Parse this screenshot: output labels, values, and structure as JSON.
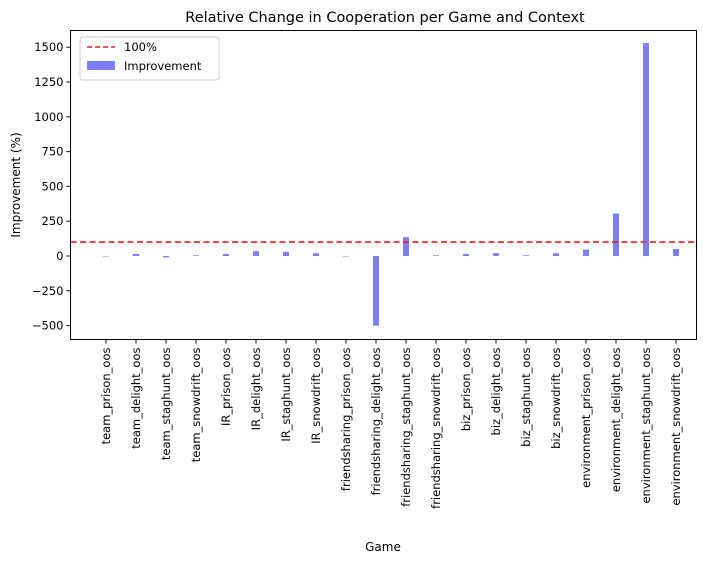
{
  "chart_data": {
    "type": "bar",
    "title": "Relative Change in Cooperation per Game and Context",
    "xlabel": "Game",
    "ylabel": "Improvement (%)",
    "ylim": [
      -600,
      1620
    ],
    "yticks": [
      -500,
      -250,
      0,
      250,
      500,
      750,
      1000,
      1250,
      1500
    ],
    "grid": false,
    "legend_position": "top-left",
    "categories": [
      "team_prison_oos",
      "team_delight_oos",
      "team_staghunt_oos",
      "team_snowdrift_oos",
      "IR_prison_oos",
      "IR_delight_oos",
      "IR_staghunt_oos",
      "IR_snowdrift_oos",
      "friendsharing_prison_oos",
      "friendsharing_delight_oos",
      "friendsharing_staghunt_oos",
      "friendsharing_snowdrift_oos",
      "biz_prison_oos",
      "biz_delight_oos",
      "biz_staghunt_oos",
      "biz_snowdrift_oos",
      "environment_prison_oos",
      "environment_delight_oos",
      "environment_staghunt_oos",
      "environment_snowdrift_oos"
    ],
    "series": [
      {
        "name": "Improvement",
        "color": "#7f7ff5",
        "values": [
          0,
          15,
          -10,
          5,
          15,
          35,
          30,
          20,
          0,
          -500,
          135,
          5,
          15,
          20,
          5,
          20,
          45,
          305,
          1530,
          50
        ]
      }
    ],
    "reference_line": {
      "name": "100%",
      "value": 100,
      "color": "#e02020",
      "style": "dashed"
    }
  }
}
